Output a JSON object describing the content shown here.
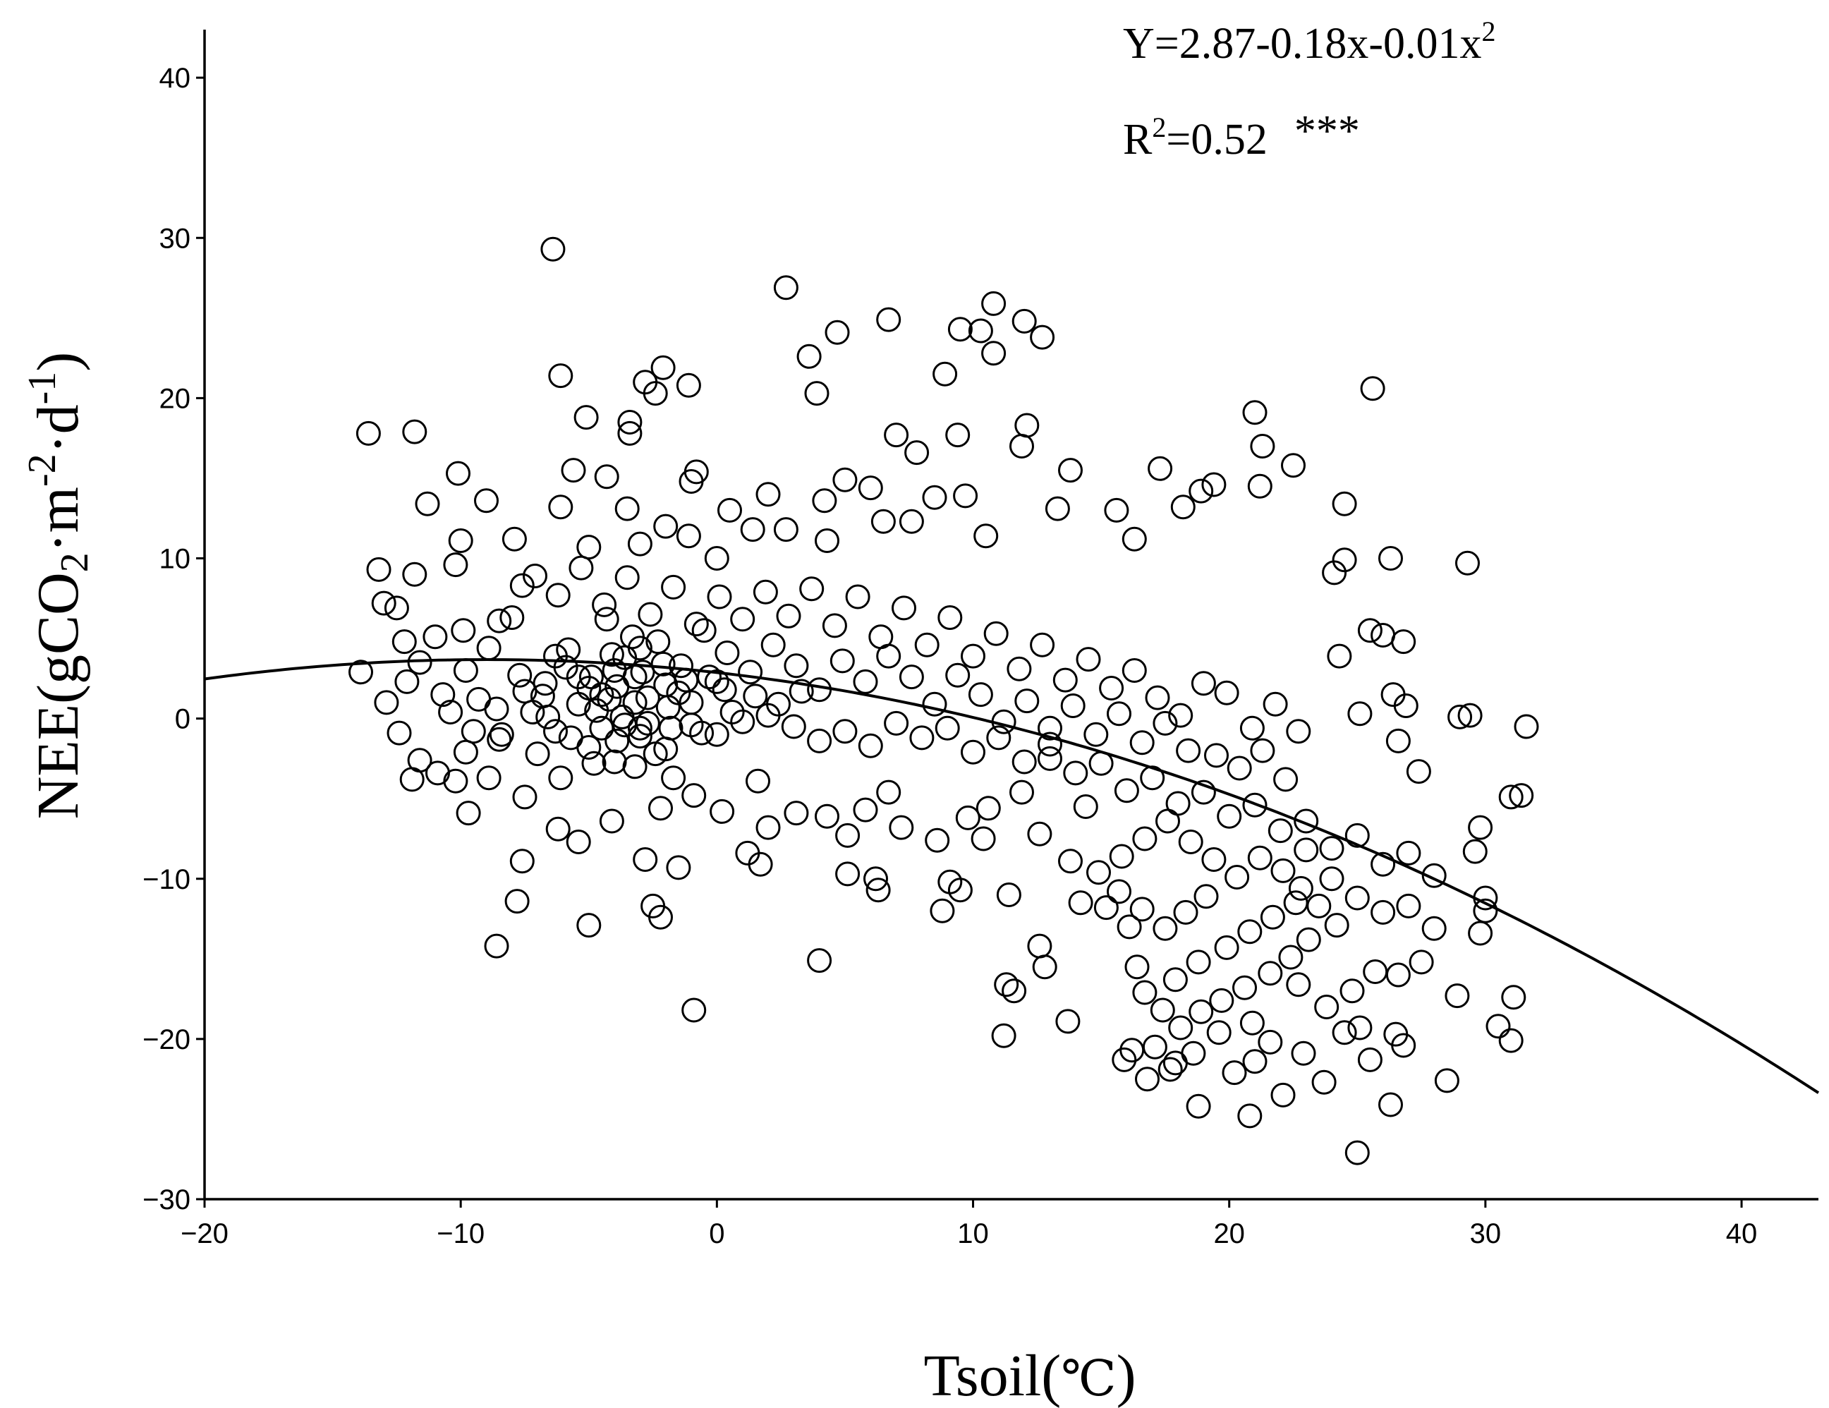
{
  "chart_data": {
    "type": "scatter",
    "title": "",
    "xlabel_main": "Tsoil(",
    "xlabel_unit": "℃",
    "xlabel_end": ")",
    "ylabel": {
      "prefix": "NEE(gCO",
      "sub": "2",
      "mid1": "·m",
      "sup1": "-2",
      "mid2": "·d",
      "sup2": "-1",
      "suffix": ")"
    },
    "equation": {
      "text": "Y=2.87-0.18x-0.01x",
      "sup": "2"
    },
    "r2": {
      "r": "R",
      "sup": "2",
      "value": "=0.52",
      "stars": "***"
    },
    "xlim": [
      -20,
      43
    ],
    "ylim": [
      -30,
      43
    ],
    "x_ticks": [
      -20,
      -10,
      0,
      10,
      20,
      30,
      40
    ],
    "y_ticks": [
      -30,
      -20,
      -10,
      0,
      10,
      20,
      30,
      40
    ],
    "x_tick_labels": [
      "−20",
      "−10",
      "0",
      "10",
      "20",
      "30",
      "40"
    ],
    "y_tick_labels": [
      "−30",
      "−20",
      "−10",
      "0",
      "10",
      "20",
      "30",
      "40"
    ],
    "fit": {
      "a": 2.87,
      "b": -0.18,
      "c": -0.01,
      "x_start": -20,
      "x_end": 43
    },
    "points": [
      [
        -13.6,
        17.8
      ],
      [
        -11.8,
        17.9
      ],
      [
        -6.4,
        29.3
      ],
      [
        -6.1,
        21.4
      ],
      [
        -5.1,
        18.8
      ],
      [
        -3.4,
        17.8
      ],
      [
        -2.8,
        21.0
      ],
      [
        -2.1,
        21.9
      ],
      [
        -2.4,
        20.3
      ],
      [
        -1.1,
        20.8
      ],
      [
        -0.8,
        15.4
      ],
      [
        -3.4,
        18.5
      ],
      [
        -5.6,
        15.5
      ],
      [
        -4.3,
        15.1
      ],
      [
        -10.1,
        15.3
      ],
      [
        -11.3,
        13.4
      ],
      [
        -9.0,
        13.6
      ],
      [
        -7.9,
        11.2
      ],
      [
        -10.0,
        11.1
      ],
      [
        -13.2,
        9.3
      ],
      [
        -11.8,
        9.0
      ],
      [
        -10.2,
        9.6
      ],
      [
        -8.5,
        6.1
      ],
      [
        -7.6,
        8.3
      ],
      [
        -12.5,
        6.9
      ],
      [
        -13.0,
        7.2
      ],
      [
        -12.2,
        4.8
      ],
      [
        -11.0,
        5.1
      ],
      [
        -9.9,
        5.5
      ],
      [
        -13.9,
        2.9
      ],
      [
        -12.1,
        2.3
      ],
      [
        -12.9,
        1.0
      ],
      [
        -12.4,
        -0.9
      ],
      [
        -11.6,
        -2.6
      ],
      [
        -11.9,
        -3.8
      ],
      [
        -10.9,
        -3.4
      ],
      [
        -10.2,
        -3.9
      ],
      [
        -9.7,
        -5.9
      ],
      [
        -8.6,
        -14.2
      ],
      [
        -7.8,
        -11.4
      ],
      [
        -7.6,
        -8.9
      ],
      [
        -5.0,
        -12.9
      ],
      [
        -2.5,
        -11.7
      ],
      [
        -2.2,
        -12.4
      ],
      [
        -0.9,
        -18.2
      ],
      [
        -2.8,
        -8.8
      ],
      [
        -1.5,
        -9.3
      ],
      [
        1.2,
        -8.4
      ],
      [
        1.7,
        -9.1
      ],
      [
        4.0,
        -15.1
      ],
      [
        5.1,
        -9.7
      ],
      [
        6.2,
        -10.0
      ],
      [
        6.3,
        -10.7
      ],
      [
        8.8,
        -12.0
      ],
      [
        9.1,
        -10.2
      ],
      [
        9.5,
        -10.7
      ],
      [
        2.7,
        26.9
      ],
      [
        3.6,
        22.6
      ],
      [
        3.9,
        20.3
      ],
      [
        4.7,
        24.1
      ],
      [
        6.7,
        24.9
      ],
      [
        8.9,
        21.5
      ],
      [
        9.5,
        24.3
      ],
      [
        10.3,
        24.2
      ],
      [
        10.8,
        25.9
      ],
      [
        12.0,
        24.8
      ],
      [
        12.7,
        23.8
      ],
      [
        10.8,
        22.8
      ],
      [
        12.1,
        18.3
      ],
      [
        11.9,
        17.0
      ],
      [
        9.4,
        17.7
      ],
      [
        7.0,
        17.7
      ],
      [
        7.8,
        16.6
      ],
      [
        5.0,
        14.9
      ],
      [
        6.0,
        14.4
      ],
      [
        4.2,
        13.6
      ],
      [
        2.0,
        14.0
      ],
      [
        0.5,
        13.0
      ],
      [
        -1.0,
        14.8
      ],
      [
        -3.5,
        13.1
      ],
      [
        -6.1,
        13.2
      ],
      [
        -5.0,
        10.7
      ],
      [
        -3.0,
        10.9
      ],
      [
        -2.0,
        12.0
      ],
      [
        -1.1,
        11.4
      ],
      [
        0.0,
        10.0
      ],
      [
        1.4,
        11.8
      ],
      [
        2.7,
        11.8
      ],
      [
        4.3,
        11.1
      ],
      [
        6.5,
        12.3
      ],
      [
        7.6,
        12.3
      ],
      [
        8.5,
        13.8
      ],
      [
        9.7,
        13.9
      ],
      [
        10.5,
        11.4
      ],
      [
        13.3,
        13.1
      ],
      [
        13.8,
        15.5
      ],
      [
        15.6,
        13.0
      ],
      [
        16.3,
        11.2
      ],
      [
        17.3,
        15.6
      ],
      [
        18.2,
        13.2
      ],
      [
        18.9,
        14.2
      ],
      [
        19.4,
        14.6
      ],
      [
        21.0,
        19.1
      ],
      [
        21.3,
        17.0
      ],
      [
        21.2,
        14.5
      ],
      [
        22.5,
        15.8
      ],
      [
        24.5,
        13.4
      ],
      [
        25.6,
        20.6
      ],
      [
        24.1,
        9.1
      ],
      [
        24.5,
        9.9
      ],
      [
        26.3,
        10.0
      ],
      [
        29.3,
        9.7
      ],
      [
        24.3,
        3.9
      ],
      [
        25.5,
        5.5
      ],
      [
        26.0,
        5.2
      ],
      [
        26.8,
        4.8
      ],
      [
        26.4,
        1.5
      ],
      [
        26.9,
        0.8
      ],
      [
        25.1,
        0.3
      ],
      [
        29.0,
        0.1
      ],
      [
        29.4,
        0.2
      ],
      [
        31.6,
        -0.5
      ],
      [
        26.6,
        -1.4
      ],
      [
        27.4,
        -3.3
      ],
      [
        29.8,
        -6.8
      ],
      [
        31.0,
        -4.9
      ],
      [
        31.4,
        -4.8
      ],
      [
        29.6,
        -8.3
      ],
      [
        30.0,
        -11.2
      ],
      [
        30.0,
        -12.0
      ],
      [
        29.8,
        -13.4
      ],
      [
        31.1,
        -17.4
      ],
      [
        30.5,
        -19.2
      ],
      [
        31.0,
        -20.1
      ],
      [
        28.9,
        -17.3
      ],
      [
        28.5,
        -22.6
      ],
      [
        26.3,
        -24.1
      ],
      [
        25.0,
        -27.1
      ],
      [
        26.8,
        -20.4
      ],
      [
        26.5,
        -19.7
      ],
      [
        25.1,
        -19.3
      ],
      [
        22.1,
        -23.5
      ],
      [
        20.8,
        -24.8
      ],
      [
        18.8,
        -24.2
      ],
      [
        21.0,
        -21.4
      ],
      [
        17.9,
        -21.5
      ],
      [
        17.1,
        -20.5
      ],
      [
        16.2,
        -20.7
      ],
      [
        15.9,
        -21.3
      ],
      [
        13.7,
        -18.9
      ],
      [
        11.2,
        -19.8
      ],
      [
        11.3,
        -16.6
      ],
      [
        11.6,
        -17.0
      ],
      [
        11.4,
        -11.0
      ],
      [
        12.6,
        -14.2
      ],
      [
        12.8,
        -15.5
      ],
      [
        14.2,
        -11.5
      ],
      [
        15.2,
        -11.8
      ],
      [
        16.1,
        -13.0
      ],
      [
        16.4,
        -15.5
      ],
      [
        13.8,
        -8.9
      ],
      [
        12.6,
        -7.2
      ],
      [
        14.4,
        -5.5
      ],
      [
        13.0,
        -2.5
      ],
      [
        11.9,
        -4.6
      ],
      [
        10.6,
        -5.6
      ],
      [
        10.4,
        -7.5
      ],
      [
        9.8,
        -6.2
      ],
      [
        8.6,
        -7.6
      ],
      [
        7.2,
        -6.8
      ],
      [
        6.7,
        -4.6
      ],
      [
        5.8,
        -5.7
      ],
      [
        5.1,
        -7.3
      ],
      [
        4.3,
        -6.1
      ],
      [
        3.1,
        -5.9
      ],
      [
        2.0,
        -6.8
      ],
      [
        1.6,
        -3.9
      ],
      [
        0.2,
        -5.8
      ],
      [
        -0.9,
        -4.8
      ],
      [
        -1.7,
        -3.7
      ],
      [
        -2.2,
        -5.6
      ],
      [
        -3.2,
        -3.0
      ],
      [
        -4.1,
        -6.4
      ],
      [
        -5.4,
        -7.7
      ],
      [
        -6.2,
        -6.9
      ],
      [
        -7.5,
        -4.9
      ],
      [
        -8.9,
        -3.7
      ],
      [
        -9.8,
        -2.1
      ],
      [
        -8.5,
        -1.3
      ],
      [
        -7.0,
        -2.2
      ],
      [
        -6.1,
        -3.7
      ],
      [
        -5.0,
        -1.8
      ],
      [
        -4.0,
        -2.7
      ],
      [
        -3.0,
        -1.1
      ],
      [
        -2.0,
        -1.9
      ],
      [
        -1.0,
        -0.4
      ],
      [
        0.0,
        -1.0
      ],
      [
        1.0,
        -0.2
      ],
      [
        2.0,
        0.2
      ],
      [
        3.0,
        -0.5
      ],
      [
        4.0,
        -1.4
      ],
      [
        5.0,
        -0.8
      ],
      [
        6.0,
        -1.7
      ],
      [
        7.0,
        -0.3
      ],
      [
        8.0,
        -1.2
      ],
      [
        9.0,
        -0.6
      ],
      [
        10.0,
        -2.1
      ],
      [
        11.0,
        -1.2
      ],
      [
        12.0,
        -2.7
      ],
      [
        13.0,
        -1.6
      ],
      [
        14.0,
        -3.4
      ],
      [
        15.0,
        -2.8
      ],
      [
        16.0,
        -4.5
      ],
      [
        17.0,
        -3.7
      ],
      [
        18.0,
        -5.3
      ],
      [
        19.0,
        -4.6
      ],
      [
        20.0,
        -6.1
      ],
      [
        21.0,
        -5.4
      ],
      [
        22.0,
        -7.0
      ],
      [
        23.0,
        -6.4
      ],
      [
        24.0,
        -8.1
      ],
      [
        25.0,
        -7.3
      ],
      [
        26.0,
        -9.1
      ],
      [
        27.0,
        -8.4
      ],
      [
        28.0,
        -9.8
      ],
      [
        22.8,
        -10.6
      ],
      [
        23.5,
        -11.7
      ],
      [
        24.2,
        -12.9
      ],
      [
        23.1,
        -13.8
      ],
      [
        22.4,
        -14.9
      ],
      [
        21.6,
        -15.9
      ],
      [
        20.6,
        -16.8
      ],
      [
        19.7,
        -17.6
      ],
      [
        18.9,
        -18.3
      ],
      [
        18.1,
        -19.3
      ],
      [
        17.4,
        -18.2
      ],
      [
        16.7,
        -17.1
      ],
      [
        17.9,
        -16.3
      ],
      [
        18.8,
        -15.2
      ],
      [
        19.9,
        -14.3
      ],
      [
        20.8,
        -13.3
      ],
      [
        21.7,
        -12.4
      ],
      [
        22.6,
        -11.5
      ],
      [
        19.1,
        -11.1
      ],
      [
        18.3,
        -12.1
      ],
      [
        17.5,
        -13.1
      ],
      [
        16.6,
        -11.9
      ],
      [
        15.7,
        -10.8
      ],
      [
        14.9,
        -9.6
      ],
      [
        15.8,
        -8.6
      ],
      [
        16.7,
        -7.5
      ],
      [
        17.6,
        -6.4
      ],
      [
        18.5,
        -7.7
      ],
      [
        19.4,
        -8.8
      ],
      [
        20.3,
        -9.9
      ],
      [
        21.2,
        -8.7
      ],
      [
        22.1,
        -9.5
      ],
      [
        23.0,
        -8.2
      ],
      [
        24.0,
        -10.0
      ],
      [
        25.0,
        -11.2
      ],
      [
        26.0,
        -12.1
      ],
      [
        27.0,
        -11.7
      ],
      [
        28.0,
        -13.1
      ],
      [
        27.5,
        -15.2
      ],
      [
        26.6,
        -16.0
      ],
      [
        25.7,
        -15.8
      ],
      [
        24.8,
        -17.0
      ],
      [
        23.8,
        -18.0
      ],
      [
        24.5,
        -19.6
      ],
      [
        25.5,
        -21.3
      ],
      [
        23.7,
        -22.7
      ],
      [
        22.9,
        -20.9
      ],
      [
        21.6,
        -20.2
      ],
      [
        20.9,
        -19.0
      ],
      [
        19.6,
        -19.6
      ],
      [
        18.6,
        -20.9
      ],
      [
        17.7,
        -21.9
      ],
      [
        16.8,
        -22.5
      ],
      [
        20.2,
        -22.1
      ],
      [
        22.7,
        -16.6
      ],
      [
        19.5,
        -2.3
      ],
      [
        20.4,
        -3.1
      ],
      [
        21.3,
        -2.0
      ],
      [
        22.2,
        -3.8
      ],
      [
        20.9,
        -0.6
      ],
      [
        21.8,
        0.9
      ],
      [
        22.7,
        -0.8
      ],
      [
        19.9,
        1.6
      ],
      [
        19.0,
        2.2
      ],
      [
        18.1,
        0.2
      ],
      [
        17.2,
        1.3
      ],
      [
        16.3,
        3.0
      ],
      [
        15.4,
        1.9
      ],
      [
        14.5,
        3.7
      ],
      [
        13.6,
        2.4
      ],
      [
        12.7,
        4.6
      ],
      [
        11.8,
        3.1
      ],
      [
        10.9,
        5.3
      ],
      [
        10.0,
        3.9
      ],
      [
        9.1,
        6.3
      ],
      [
        8.2,
        4.6
      ],
      [
        7.3,
        6.9
      ],
      [
        6.4,
        5.1
      ],
      [
        5.5,
        7.6
      ],
      [
        4.6,
        5.8
      ],
      [
        3.7,
        8.1
      ],
      [
        2.8,
        6.4
      ],
      [
        1.9,
        7.9
      ],
      [
        1.0,
        6.2
      ],
      [
        0.1,
        7.6
      ],
      [
        -0.8,
        5.9
      ],
      [
        -1.7,
        8.2
      ],
      [
        -2.6,
        6.5
      ],
      [
        -3.5,
        8.8
      ],
      [
        -4.4,
        7.1
      ],
      [
        -5.3,
        9.4
      ],
      [
        -6.2,
        7.7
      ],
      [
        -7.1,
        8.9
      ],
      [
        -8.0,
        6.3
      ],
      [
        -8.9,
        4.4
      ],
      [
        -9.8,
        3.0
      ],
      [
        -10.7,
        1.5
      ],
      [
        -11.6,
        3.5
      ],
      [
        -10.4,
        0.4
      ],
      [
        -9.5,
        -0.8
      ],
      [
        -8.6,
        0.6
      ],
      [
        -7.7,
        2.7
      ],
      [
        -6.8,
        1.4
      ],
      [
        -5.9,
        3.2
      ],
      [
        -5.0,
        1.9
      ],
      [
        -4.1,
        4.0
      ],
      [
        -3.2,
        2.6
      ],
      [
        -2.3,
        4.8
      ],
      [
        -1.4,
        3.3
      ],
      [
        -0.5,
        5.5
      ],
      [
        0.4,
        4.1
      ],
      [
        1.3,
        2.9
      ],
      [
        2.2,
        4.6
      ],
      [
        3.1,
        3.3
      ],
      [
        4.0,
        1.8
      ],
      [
        4.9,
        3.6
      ],
      [
        5.8,
        2.3
      ],
      [
        6.7,
        3.9
      ],
      [
        7.6,
        2.6
      ],
      [
        8.5,
        0.9
      ],
      [
        9.4,
        2.7
      ],
      [
        10.3,
        1.5
      ],
      [
        11.2,
        -0.2
      ],
      [
        12.1,
        1.1
      ],
      [
        13.0,
        -0.6
      ],
      [
        13.9,
        0.8
      ],
      [
        14.8,
        -1.0
      ],
      [
        15.7,
        0.3
      ],
      [
        16.6,
        -1.5
      ],
      [
        17.5,
        -0.3
      ],
      [
        18.4,
        -2.0
      ],
      [
        -4.7,
        0.5
      ],
      [
        -4.2,
        1.2
      ],
      [
        -3.7,
        0.1
      ],
      [
        -3.2,
        1.0
      ],
      [
        -2.7,
        -0.3
      ],
      [
        -4.9,
        2.6
      ],
      [
        -3.9,
        -1.4
      ],
      [
        -2.9,
        2.9
      ],
      [
        -1.9,
        0.7
      ],
      [
        -3.6,
        3.8
      ],
      [
        -4.5,
        -0.6
      ],
      [
        -5.4,
        0.9
      ],
      [
        -6.3,
        -0.8
      ],
      [
        -7.2,
        0.4
      ],
      [
        -3.3,
        5.1
      ],
      [
        -2.4,
        -2.2
      ],
      [
        -1.5,
        1.6
      ],
      [
        -0.6,
        -0.9
      ],
      [
        0.3,
        1.8
      ],
      [
        -5.8,
        4.3
      ],
      [
        -6.7,
        2.2
      ],
      [
        -4.3,
        6.2
      ],
      [
        -1.2,
        2.4
      ],
      [
        -2.1,
        3.4
      ],
      [
        -3.0,
        4.4
      ],
      [
        -3.9,
        2.0
      ],
      [
        -4.8,
        -2.8
      ],
      [
        -5.7,
        -1.2
      ],
      [
        -6.6,
        0.1
      ],
      [
        -7.5,
        1.7
      ],
      [
        -8.4,
        -1.0
      ],
      [
        -9.3,
        1.2
      ],
      [
        -0.3,
        2.6
      ],
      [
        0.6,
        0.4
      ],
      [
        1.5,
        1.4
      ],
      [
        2.4,
        0.9
      ],
      [
        3.3,
        1.7
      ],
      [
        -1.8,
        -0.6
      ],
      [
        -2.7,
        1.3
      ],
      [
        -3.6,
        -0.4
      ],
      [
        -4.5,
        1.5
      ],
      [
        -5.4,
        2.6
      ],
      [
        -6.3,
        3.9
      ],
      [
        -4.0,
        3.0
      ],
      [
        -3.0,
        -0.6
      ],
      [
        -2.0,
        2.1
      ],
      [
        -1.0,
        1.0
      ],
      [
        0.0,
        2.3
      ]
    ]
  }
}
